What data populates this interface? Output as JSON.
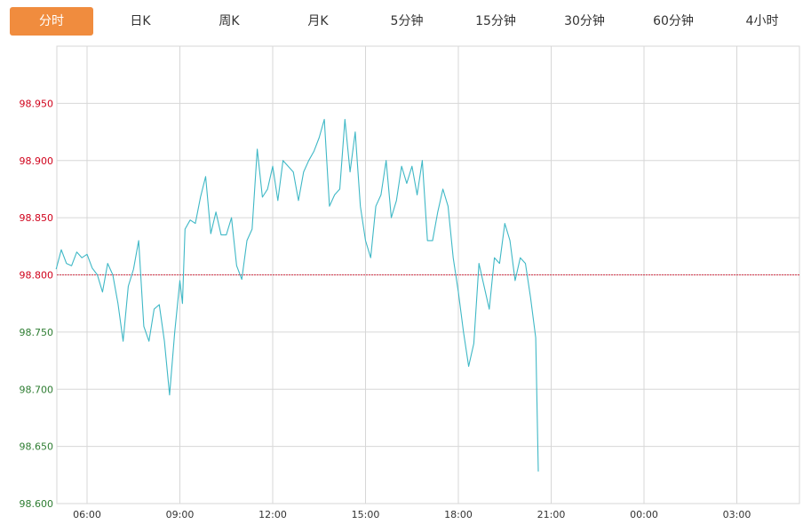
{
  "tabs": [
    {
      "label": "分时",
      "active": true
    },
    {
      "label": "日K"
    },
    {
      "label": "周K"
    },
    {
      "label": "月K"
    },
    {
      "label": "5分钟"
    },
    {
      "label": "15分钟"
    },
    {
      "label": "30分钟"
    },
    {
      "label": "60分钟"
    },
    {
      "label": "4小时"
    }
  ],
  "colors": {
    "active_tab": "#f08c3e",
    "line": "#3fb8c6",
    "grid": "#d7d7d7",
    "above_ref_label": "#d0021b",
    "below_ref_label": "#2e7d32",
    "ref_line": "#d0021b"
  },
  "chart_data": {
    "type": "line",
    "ylim": [
      98.6,
      99.0
    ],
    "y_ticks": [
      "98.950",
      "98.900",
      "98.850",
      "98.800",
      "98.750",
      "98.700",
      "98.650",
      "98.600"
    ],
    "x_ticks": [
      "06:00",
      "09:00",
      "12:00",
      "15:00",
      "18:00",
      "21:00",
      "00:00",
      "03:00"
    ],
    "reference": 98.8,
    "grid": true,
    "series": [
      {
        "x": [
          "05:00",
          "05:10",
          "05:20",
          "05:30",
          "05:40",
          "05:50",
          "06:00",
          "06:10",
          "06:20",
          "06:30",
          "06:40",
          "06:50",
          "07:00",
          "07:10",
          "07:20",
          "07:30",
          "07:40",
          "07:50",
          "08:00",
          "08:10",
          "08:20",
          "08:30",
          "08:40",
          "08:50",
          "09:00",
          "09:05",
          "09:10",
          "09:20",
          "09:30",
          "09:40",
          "09:50",
          "10:00",
          "10:10",
          "10:20",
          "10:30",
          "10:40",
          "10:50",
          "11:00",
          "11:10",
          "11:20",
          "11:30",
          "11:40",
          "11:50",
          "12:00",
          "12:10",
          "12:20",
          "12:30",
          "12:40",
          "12:50",
          "13:00",
          "13:10",
          "13:20",
          "13:30",
          "13:40",
          "13:50",
          "14:00",
          "14:10",
          "14:20",
          "14:30",
          "14:40",
          "14:50",
          "15:00",
          "15:10",
          "15:20",
          "15:30",
          "15:40",
          "15:50",
          "16:00",
          "16:10",
          "16:20",
          "16:30",
          "16:40",
          "16:50",
          "17:00",
          "17:10",
          "17:20",
          "17:30",
          "17:40",
          "17:50",
          "18:00",
          "18:10",
          "18:20",
          "18:30",
          "18:40",
          "18:50",
          "19:00",
          "19:10",
          "19:20",
          "19:30",
          "19:40",
          "19:50",
          "20:00",
          "20:10",
          "20:20",
          "20:30",
          "20:35"
        ],
        "values": [
          98.805,
          98.822,
          98.81,
          98.808,
          98.82,
          98.815,
          98.818,
          98.806,
          98.8,
          98.785,
          98.81,
          98.8,
          98.775,
          98.742,
          98.79,
          98.805,
          98.83,
          98.755,
          98.742,
          98.77,
          98.774,
          98.742,
          98.695,
          98.75,
          98.795,
          98.775,
          98.84,
          98.848,
          98.845,
          98.868,
          98.886,
          98.836,
          98.855,
          98.835,
          98.835,
          98.85,
          98.808,
          98.796,
          98.83,
          98.84,
          98.91,
          98.868,
          98.875,
          98.895,
          98.865,
          98.9,
          98.895,
          98.89,
          98.865,
          98.89,
          98.9,
          98.908,
          98.92,
          98.936,
          98.86,
          98.87,
          98.875,
          98.936,
          98.89,
          98.925,
          98.86,
          98.83,
          98.815,
          98.86,
          98.87,
          98.9,
          98.85,
          98.865,
          98.895,
          98.88,
          98.895,
          98.87,
          98.9,
          98.83,
          98.83,
          98.855,
          98.875,
          98.86,
          98.815,
          98.785,
          98.75,
          98.72,
          98.74,
          98.81,
          98.79,
          98.77,
          98.815,
          98.81,
          98.845,
          98.83,
          98.795,
          98.815,
          98.81,
          98.78,
          98.745,
          98.628
        ]
      }
    ]
  }
}
